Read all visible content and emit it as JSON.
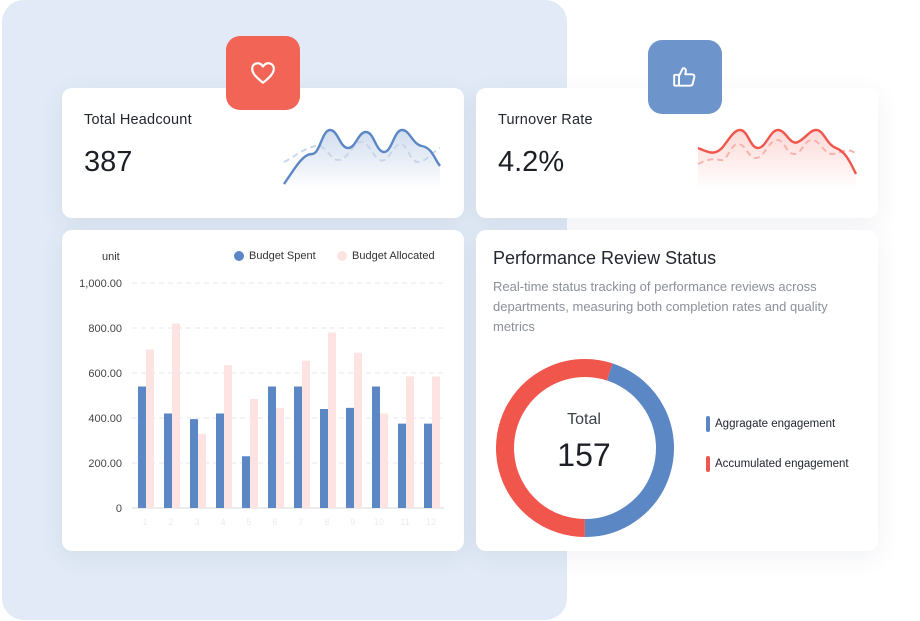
{
  "colors": {
    "blue": "#5b87c5",
    "blue_light": "#c9d6ea",
    "red": "#f0564c",
    "pink": "#fde3e2",
    "heart_badge": "#f26556",
    "thumb_badge": "#6d95cc"
  },
  "headcount": {
    "label": "Total Headcount",
    "value": "387",
    "icon": "heart-icon"
  },
  "turnover": {
    "label": "Turnover Rate",
    "value": "4.2%",
    "icon": "thumbs-up-icon"
  },
  "chart_data": {
    "type": "bar",
    "ylabel": "unit",
    "ylim": [
      0,
      1000
    ],
    "yticks": [
      "0",
      "200.00",
      "400.00",
      "600.00",
      "800.00",
      "1,000.00"
    ],
    "grid": true,
    "legend_position": "top-right",
    "categories": [
      "1",
      "2",
      "3",
      "4",
      "5",
      "6",
      "7",
      "8",
      "9",
      "10",
      "11",
      "12"
    ],
    "series": [
      {
        "name": "Budget Spent",
        "color": "#5b87c5",
        "values": [
          540,
          420,
          395,
          420,
          230,
          540,
          540,
          440,
          445,
          540,
          375,
          375
        ]
      },
      {
        "name": "Budget Allocated",
        "color": "#fde3e2",
        "values": [
          705,
          820,
          330,
          635,
          485,
          445,
          655,
          780,
          690,
          420,
          585,
          585
        ]
      }
    ]
  },
  "performance": {
    "title": "Performance Review Status",
    "description": "Real-time status tracking of performance reviews across departments, measuring both completion rates and quality metrics",
    "total_label": "Total",
    "total_value": "157",
    "segments": [
      {
        "name": "Aggragate engagement",
        "color": "#5b87c5",
        "share": 0.45
      },
      {
        "name": "Accumulated engagement",
        "color": "#f0564c",
        "share": 0.55
      }
    ]
  }
}
